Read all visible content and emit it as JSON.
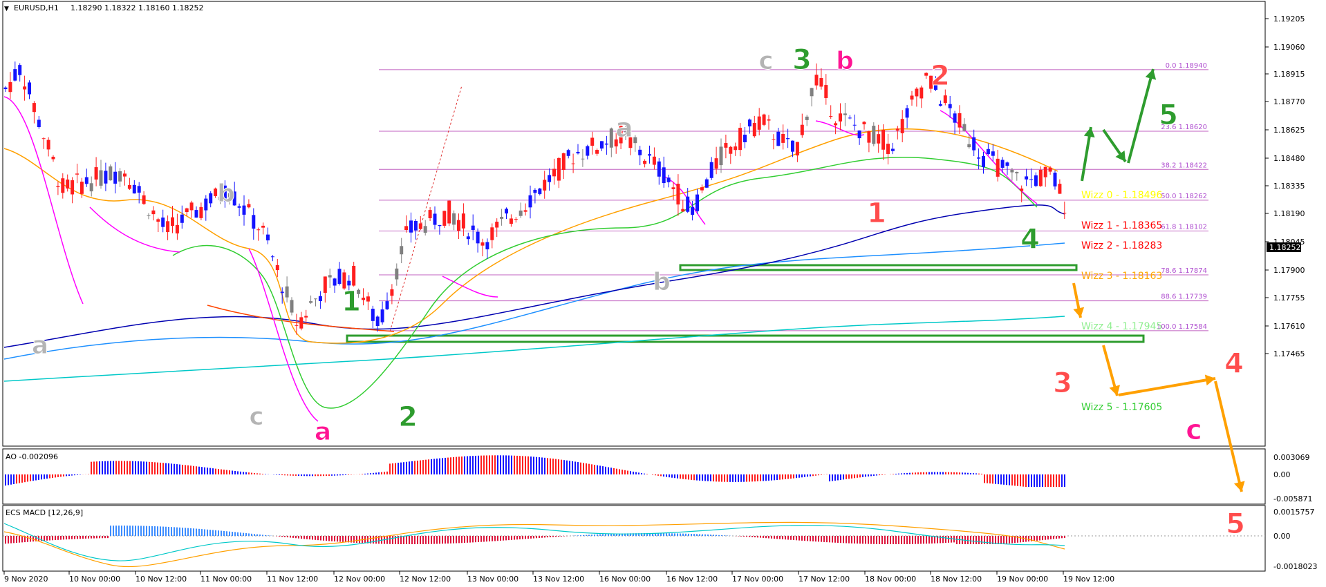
{
  "chart_data": {
    "type": "candlestick",
    "symbol_label": "EURUSD,H1",
    "ohlc_label": "1.18290 1.18322 1.18160 1.18252",
    "current_price": "1.18252",
    "ylim": [
      1.174,
      1.1925
    ],
    "y_ticks": [
      "1.19205",
      "1.19060",
      "1.18915",
      "1.18770",
      "1.18625",
      "1.18480",
      "1.18335",
      "1.18190",
      "1.18045",
      "1.17900",
      "1.17755",
      "1.17610",
      "1.17465"
    ],
    "x_labels": [
      "9 Nov 2020",
      "10 Nov 00:00",
      "10 Nov 12:00",
      "11 Nov 00:00",
      "11 Nov 12:00",
      "12 Nov 00:00",
      "12 Nov 12:00",
      "13 Nov 00:00",
      "13 Nov 12:00",
      "16 Nov 00:00",
      "16 Nov 12:00",
      "17 Nov 00:00",
      "17 Nov 12:00",
      "18 Nov 00:00",
      "18 Nov 12:00",
      "19 Nov 00:00",
      "19 Nov 12:00"
    ],
    "fib_levels": [
      {
        "label": "0.0 1.18940",
        "price": 1.1894
      },
      {
        "label": "23.6 1.18620",
        "price": 1.1862
      },
      {
        "label": "38.2 1.18422",
        "price": 1.18422
      },
      {
        "label": "50.0 1.18262",
        "price": 1.18262
      },
      {
        "label": "61.8 1.18102",
        "price": 1.18102
      },
      {
        "label": "78.6 1.17874",
        "price": 1.17874
      },
      {
        "label": "88.6 1.17739",
        "price": 1.17739
      },
      {
        "label": "100.0 1.17584",
        "price": 1.17584
      }
    ],
    "wizz_levels": [
      {
        "label": "Wizz 0 - 1.18496",
        "color": "#ffff00"
      },
      {
        "label": "Wizz 1 - 1.18365",
        "color": "#ff0000"
      },
      {
        "label": "Wizz 2 - 1.18283",
        "color": "#ff0000"
      },
      {
        "label": "Wizz 3 - 1.18163",
        "color": "#ffa500"
      },
      {
        "label": "Wizz 4 - 1.17945",
        "color": "#90ee90"
      },
      {
        "label": "Wizz 5 - 1.17605",
        "color": "#32cd32"
      }
    ],
    "wave_labels": [
      {
        "text": "a",
        "color": "#b4b4b4"
      },
      {
        "text": "b",
        "color": "#b4b4b4"
      },
      {
        "text": "c",
        "color": "#b4b4b4"
      },
      {
        "text": "a",
        "color": "#ff1493"
      },
      {
        "text": "1",
        "color": "#2e9c2e"
      },
      {
        "text": "2",
        "color": "#2e9c2e"
      },
      {
        "text": "a",
        "color": "#b4b4b4"
      },
      {
        "text": "b",
        "color": "#b4b4b4"
      },
      {
        "text": "c",
        "color": "#b4b4b4"
      },
      {
        "text": "3",
        "color": "#2e9c2e"
      },
      {
        "text": "b",
        "color": "#ff1493"
      },
      {
        "text": "1",
        "color": "#ff4c4c"
      },
      {
        "text": "2",
        "color": "#ff4c4c"
      },
      {
        "text": "4",
        "color": "#2e9c2e"
      },
      {
        "text": "5",
        "color": "#2e9c2e"
      },
      {
        "text": "3",
        "color": "#ff4c4c"
      },
      {
        "text": "4",
        "color": "#ff4c4c"
      },
      {
        "text": "c",
        "color": "#ff1493"
      },
      {
        "text": "5",
        "color": "#ff4c4c"
      }
    ],
    "ao": {
      "label": "AO -0.002096",
      "y_ticks": [
        "0.003069",
        "0.00",
        "-0.005871"
      ]
    },
    "macd": {
      "label": "ECS MACD [12,26,9]",
      "y_ticks": [
        "0.0015757",
        "0.00",
        "-0.0018023"
      ]
    }
  }
}
